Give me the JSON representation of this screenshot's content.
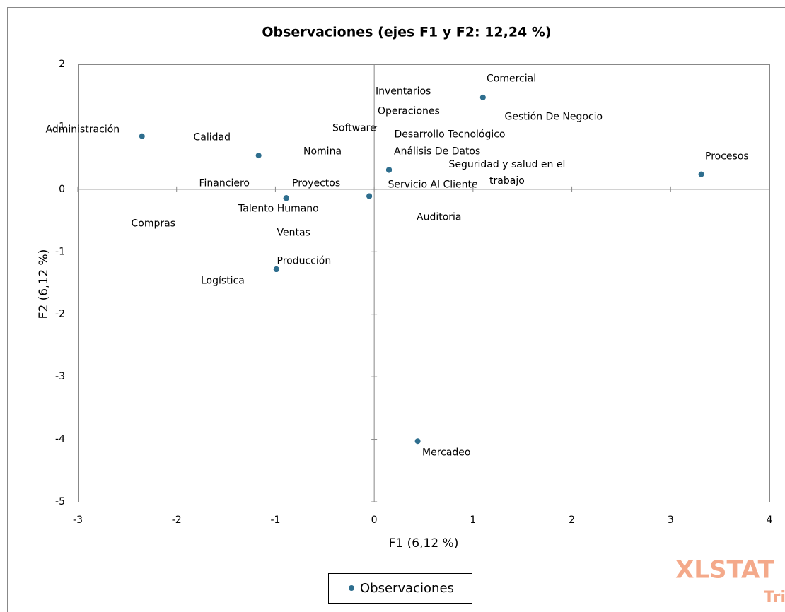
{
  "chart_data": {
    "type": "scatter",
    "title": "Observaciones (ejes F1 y F2: 12,24 %)",
    "xlabel": "F1 (6,12 %)",
    "ylabel": "F2 (6,12 %)",
    "xlim": [
      -3,
      4
    ],
    "xticks": [
      -3,
      -2,
      -1,
      0,
      1,
      2,
      3,
      4
    ],
    "ylim": [
      -5,
      2
    ],
    "yticks": [
      -5,
      -4,
      -3,
      -2,
      -1,
      0,
      1,
      2
    ],
    "legend": "bottom",
    "series": [
      {
        "name": "Observaciones",
        "color": "#2e6e8e",
        "labels": [
          "Comercial",
          "Inventarios",
          "Operaciones",
          "Gestión De Negocio",
          "Administración",
          "Software",
          "Desarrollo Tecnológico",
          "Calidad",
          "Nomina",
          "Análisis De Datos",
          "Procesos",
          "Seguridad y salud en el\ntrabajo",
          "Financiero",
          "Proyectos",
          "Servicio Al Cliente",
          "Talento Humano",
          "Auditoria",
          "Compras",
          "Ventas",
          "Producción",
          "Logística",
          "Mercadeo"
        ],
        "x": [
          1.1,
          0.15,
          0.15,
          0.15,
          -2.35,
          -0.05,
          0.15,
          -1.17,
          -0.89,
          0.15,
          3.31,
          0.15,
          -0.89,
          -0.89,
          -0.05,
          -0.89,
          -0.05,
          -0.99,
          -0.89,
          -0.99,
          -0.99,
          0.44
        ],
        "values": [
          1.47,
          0.31,
          0.31,
          0.31,
          0.85,
          -0.11,
          0.31,
          0.54,
          -0.14,
          0.31,
          0.24,
          0.31,
          -0.14,
          -0.14,
          -0.11,
          -0.14,
          -0.11,
          -1.28,
          -0.14,
          -1.28,
          -1.28,
          -4.03
        ]
      }
    ],
    "logo": [
      "XLSTAT",
      "Tria"
    ]
  }
}
